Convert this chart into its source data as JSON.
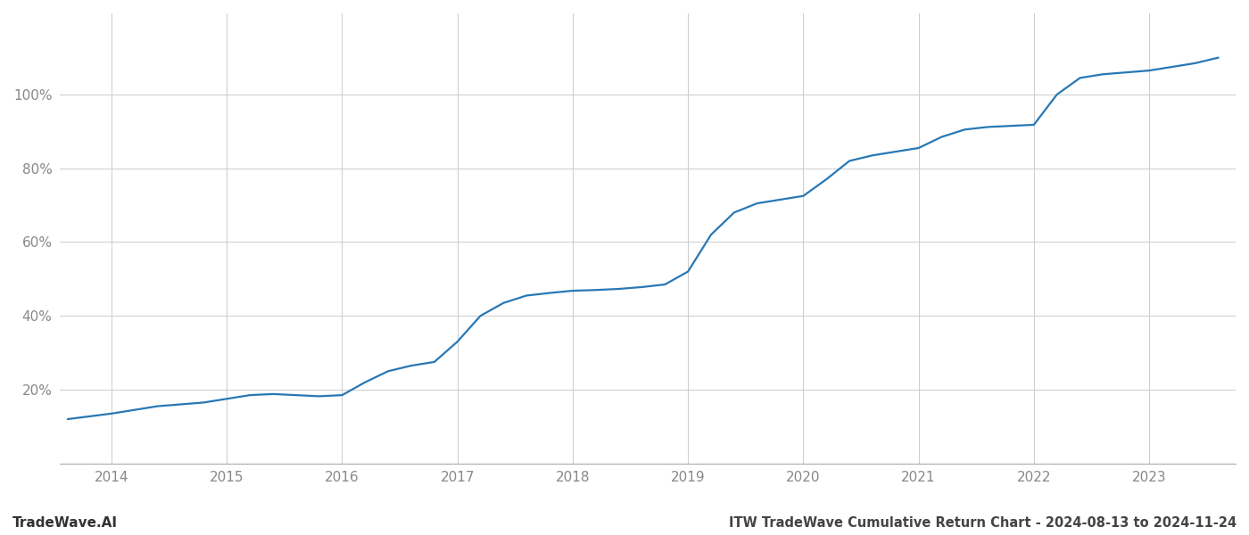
{
  "title": "ITW TradeWave Cumulative Return Chart - 2024-08-13 to 2024-11-24",
  "watermark": "TradeWave.AI",
  "line_color": "#2878b5",
  "line_width": 1.6,
  "background_color": "#ffffff",
  "grid_color": "#cccccc",
  "x_tick_labels": [
    "2014",
    "2015",
    "2016",
    "2017",
    "2018",
    "2019",
    "2020",
    "2021",
    "2022",
    "2023"
  ],
  "x_values": [
    2013.62,
    2014.0,
    2014.2,
    2014.4,
    2014.6,
    2014.8,
    2015.0,
    2015.2,
    2015.4,
    2015.6,
    2015.8,
    2016.0,
    2016.2,
    2016.4,
    2016.6,
    2016.8,
    2017.0,
    2017.2,
    2017.4,
    2017.6,
    2017.8,
    2018.0,
    2018.2,
    2018.4,
    2018.6,
    2018.8,
    2019.0,
    2019.2,
    2019.4,
    2019.6,
    2019.8,
    2020.0,
    2020.2,
    2020.4,
    2020.6,
    2020.8,
    2021.0,
    2021.2,
    2021.4,
    2021.6,
    2021.8,
    2022.0,
    2022.2,
    2022.4,
    2022.6,
    2022.8,
    2023.0,
    2023.2,
    2023.4,
    2023.6
  ],
  "y_values": [
    12.0,
    13.5,
    14.5,
    15.5,
    16.0,
    16.5,
    17.5,
    18.5,
    18.8,
    18.5,
    18.2,
    18.5,
    22.0,
    25.0,
    26.5,
    27.5,
    33.0,
    40.0,
    43.5,
    45.5,
    46.2,
    46.8,
    47.0,
    47.3,
    47.8,
    48.5,
    52.0,
    62.0,
    68.0,
    70.5,
    71.5,
    72.5,
    77.0,
    82.0,
    83.5,
    84.5,
    85.5,
    88.5,
    90.5,
    91.2,
    91.5,
    91.8,
    100.0,
    104.5,
    105.5,
    106.0,
    106.5,
    107.5,
    108.5,
    110.0
  ],
  "xlim": [
    2013.55,
    2023.75
  ],
  "ylim": [
    0,
    122
  ],
  "y_ticks": [
    20,
    40,
    60,
    80,
    100
  ],
  "x_ticks": [
    2014,
    2015,
    2016,
    2017,
    2018,
    2019,
    2020,
    2021,
    2022,
    2023
  ],
  "tick_label_color": "#888888",
  "title_color": "#444444",
  "watermark_color": "#333333",
  "title_fontsize": 10.5,
  "watermark_fontsize": 11,
  "tick_fontsize": 11
}
